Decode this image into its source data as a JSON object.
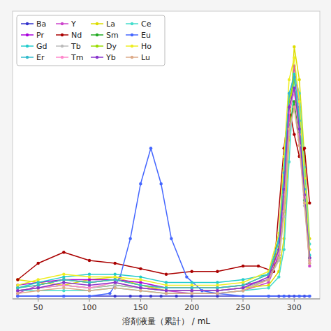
{
  "chart_data": {
    "type": "line",
    "x_label": "溶剤液量（累計） / mL",
    "xlim": [
      25,
      325
    ],
    "xticks": [
      50,
      100,
      150,
      200,
      250,
      300
    ],
    "ylim": [
      0.0,
      1.05
    ],
    "tick_labels": "x",
    "grid": false,
    "legend": "upper left",
    "series": [
      {
        "name": "Ba",
        "color": "#3333cc",
        "marker": "circle",
        "x": [
          30,
          50,
          75,
          100,
          125,
          140,
          150,
          160,
          170,
          185,
          200,
          225,
          250,
          275,
          285,
          290,
          295,
          300,
          305,
          310,
          315
        ],
        "values": [
          0.01,
          0.01,
          0.01,
          0.01,
          0.01,
          0.01,
          0.01,
          0.01,
          0.01,
          0.01,
          0.01,
          0.01,
          0.01,
          0.01,
          0.01,
          0.01,
          0.01,
          0.01,
          0.01,
          0.01,
          0.01
        ]
      },
      {
        "name": "Y",
        "color": "#cc44cc",
        "marker": "circle",
        "x": [
          30,
          50,
          75,
          100,
          125,
          150,
          175,
          200,
          225,
          250,
          275,
          285,
          290,
          295,
          300,
          305,
          310,
          315
        ],
        "values": [
          0.02,
          0.05,
          0.07,
          0.06,
          0.07,
          0.05,
          0.03,
          0.02,
          0.02,
          0.03,
          0.06,
          0.15,
          0.35,
          0.65,
          0.85,
          0.7,
          0.38,
          0.12
        ]
      },
      {
        "name": "La",
        "color": "#dddd00",
        "marker": "circle",
        "x": [
          30,
          50,
          75,
          100,
          125,
          150,
          175,
          200,
          225,
          250,
          275,
          285,
          290,
          295,
          300,
          305,
          310,
          315
        ],
        "values": [
          0.07,
          0.06,
          0.05,
          0.07,
          0.08,
          0.05,
          0.03,
          0.03,
          0.03,
          0.04,
          0.05,
          0.1,
          0.22,
          0.58,
          0.92,
          0.8,
          0.52,
          0.22
        ]
      },
      {
        "name": "Ce",
        "color": "#44ddcc",
        "marker": "circle",
        "x": [
          30,
          50,
          75,
          100,
          125,
          150,
          175,
          200,
          225,
          250,
          275,
          285,
          290,
          295,
          300,
          305,
          310,
          315
        ],
        "values": [
          0.03,
          0.03,
          0.03,
          0.03,
          0.04,
          0.03,
          0.02,
          0.02,
          0.02,
          0.03,
          0.04,
          0.08,
          0.18,
          0.5,
          0.82,
          0.75,
          0.48,
          0.2
        ]
      },
      {
        "name": "Pr",
        "color": "#aa00dd",
        "marker": "circle",
        "x": [
          30,
          50,
          75,
          100,
          125,
          150,
          175,
          200,
          225,
          250,
          275,
          285,
          290,
          295,
          300,
          305,
          310,
          315
        ],
        "values": [
          0.05,
          0.06,
          0.07,
          0.07,
          0.07,
          0.06,
          0.04,
          0.04,
          0.04,
          0.05,
          0.07,
          0.16,
          0.38,
          0.68,
          0.76,
          0.63,
          0.4,
          0.15
        ]
      },
      {
        "name": "Nd",
        "color": "#aa0000",
        "marker": "circle",
        "x": [
          30,
          50,
          75,
          100,
          125,
          150,
          175,
          200,
          225,
          250,
          265,
          280,
          290,
          295,
          300,
          305,
          310,
          315
        ],
        "values": [
          0.07,
          0.13,
          0.17,
          0.14,
          0.13,
          0.11,
          0.09,
          0.1,
          0.1,
          0.12,
          0.12,
          0.1,
          0.55,
          0.7,
          0.6,
          0.52,
          0.55,
          0.35
        ]
      },
      {
        "name": "Sm",
        "color": "#22aa22",
        "marker": "circle",
        "x": [
          30,
          50,
          75,
          100,
          125,
          150,
          175,
          200,
          225,
          250,
          275,
          285,
          290,
          295,
          300,
          305,
          310,
          315
        ],
        "values": [
          0.03,
          0.04,
          0.05,
          0.04,
          0.05,
          0.04,
          0.03,
          0.03,
          0.03,
          0.04,
          0.07,
          0.15,
          0.32,
          0.62,
          0.72,
          0.58,
          0.36,
          0.14
        ]
      },
      {
        "name": "Eu",
        "color": "#4466ff",
        "marker": "circle",
        "x": [
          30,
          50,
          75,
          100,
          120,
          130,
          140,
          150,
          160,
          170,
          180,
          195,
          210,
          225,
          250,
          275,
          290,
          305,
          315
        ],
        "values": [
          0.01,
          0.01,
          0.01,
          0.01,
          0.02,
          0.08,
          0.22,
          0.42,
          0.55,
          0.42,
          0.22,
          0.08,
          0.03,
          0.02,
          0.01,
          0.01,
          0.01,
          0.01,
          0.01
        ]
      },
      {
        "name": "Gd",
        "color": "#22cccc",
        "marker": "circle",
        "x": [
          30,
          50,
          75,
          100,
          125,
          150,
          175,
          200,
          225,
          250,
          275,
          285,
          290,
          295,
          300,
          305,
          310,
          315
        ],
        "values": [
          0.04,
          0.06,
          0.08,
          0.09,
          0.09,
          0.08,
          0.06,
          0.06,
          0.06,
          0.07,
          0.09,
          0.22,
          0.48,
          0.74,
          0.82,
          0.66,
          0.42,
          0.16
        ]
      },
      {
        "name": "Tb",
        "color": "#bbbbbb",
        "marker": "circle",
        "x": [
          30,
          50,
          75,
          100,
          125,
          150,
          175,
          200,
          225,
          250,
          275,
          285,
          290,
          295,
          300,
          305,
          310,
          315
        ],
        "values": [
          0.03,
          0.04,
          0.05,
          0.04,
          0.05,
          0.04,
          0.03,
          0.03,
          0.03,
          0.04,
          0.07,
          0.14,
          0.3,
          0.6,
          0.7,
          0.56,
          0.34,
          0.13
        ]
      },
      {
        "name": "Dy",
        "color": "#99dd00",
        "marker": "circle",
        "x": [
          30,
          50,
          75,
          100,
          125,
          150,
          175,
          200,
          225,
          250,
          275,
          285,
          290,
          295,
          300,
          305,
          310,
          315
        ],
        "values": [
          0.04,
          0.05,
          0.07,
          0.06,
          0.07,
          0.05,
          0.04,
          0.04,
          0.04,
          0.05,
          0.09,
          0.19,
          0.42,
          0.72,
          0.8,
          0.64,
          0.4,
          0.15
        ]
      },
      {
        "name": "Ho",
        "color": "#eeee22",
        "marker": "circle",
        "x": [
          30,
          50,
          75,
          100,
          125,
          150,
          175,
          200,
          225,
          250,
          275,
          285,
          290,
          295,
          300,
          305,
          310,
          315
        ],
        "values": [
          0.05,
          0.07,
          0.09,
          0.08,
          0.08,
          0.07,
          0.05,
          0.05,
          0.05,
          0.06,
          0.1,
          0.24,
          0.52,
          0.8,
          0.88,
          0.72,
          0.44,
          0.18
        ]
      },
      {
        "name": "Er",
        "color": "#33bbcc",
        "marker": "circle",
        "x": [
          30,
          50,
          75,
          100,
          125,
          150,
          175,
          200,
          225,
          250,
          275,
          285,
          290,
          295,
          300,
          305,
          310,
          315
        ],
        "values": [
          0.04,
          0.05,
          0.07,
          0.06,
          0.07,
          0.05,
          0.04,
          0.04,
          0.04,
          0.05,
          0.09,
          0.21,
          0.46,
          0.75,
          0.81,
          0.65,
          0.4,
          0.15
        ]
      },
      {
        "name": "Tm",
        "color": "#ff88cc",
        "marker": "circle",
        "x": [
          30,
          50,
          75,
          100,
          125,
          150,
          175,
          200,
          225,
          250,
          275,
          285,
          290,
          295,
          300,
          305,
          310,
          315
        ],
        "values": [
          0.03,
          0.04,
          0.05,
          0.04,
          0.06,
          0.04,
          0.03,
          0.03,
          0.03,
          0.04,
          0.08,
          0.17,
          0.38,
          0.68,
          0.76,
          0.6,
          0.37,
          0.14
        ]
      },
      {
        "name": "Yb",
        "color": "#8833cc",
        "marker": "circle",
        "x": [
          30,
          50,
          75,
          100,
          125,
          150,
          175,
          200,
          225,
          250,
          275,
          285,
          290,
          295,
          300,
          305,
          310,
          315
        ],
        "values": [
          0.03,
          0.04,
          0.06,
          0.05,
          0.06,
          0.04,
          0.03,
          0.03,
          0.03,
          0.04,
          0.08,
          0.18,
          0.4,
          0.7,
          0.77,
          0.62,
          0.38,
          0.15
        ]
      },
      {
        "name": "Lu",
        "color": "#ddaa88",
        "marker": "circle",
        "x": [
          30,
          50,
          75,
          100,
          125,
          150,
          175,
          200,
          225,
          250,
          275,
          285,
          290,
          295,
          300,
          305,
          310,
          315
        ],
        "values": [
          0.02,
          0.03,
          0.04,
          0.03,
          0.04,
          0.03,
          0.02,
          0.02,
          0.02,
          0.03,
          0.07,
          0.15,
          0.32,
          0.62,
          0.7,
          0.56,
          0.35,
          0.13
        ]
      }
    ]
  }
}
